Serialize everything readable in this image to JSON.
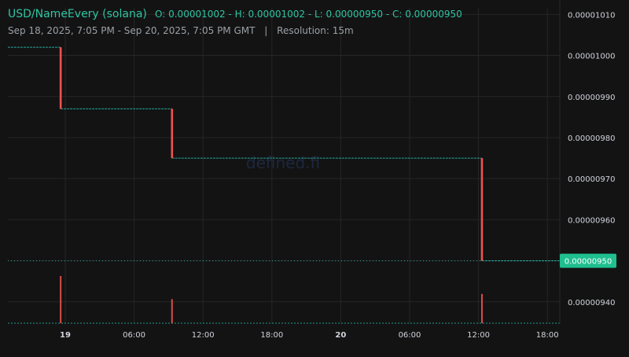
{
  "header": {
    "pair": "USD/NameEvery (solana)",
    "ohlc_line": "O: 0.00001002 - H: 0.00001002 - L: 0.00000950 - C: 0.00000950",
    "range": "Sep 18, 2025, 7:05 PM - Sep 20, 2025, 7:05 PM GMT",
    "separator": "|",
    "resolution": "Resolution: 15m"
  },
  "watermark": "defined.fi",
  "colors": {
    "background": "#131313",
    "up": "#26a69a",
    "down": "#ef5350",
    "accent": "#2fc4a2",
    "last_price_bg": "#1fbf8f"
  },
  "chart_data": {
    "type": "candlestick",
    "title": "USD/NameEvery (solana)",
    "resolution": "15m",
    "ylim": [
      9.346e-06,
      1.0116e-05
    ],
    "y_ticks": [
      "0.00001010",
      "0.00001000",
      "0.00000990",
      "0.00000980",
      "0.00000970",
      "0.00000960",
      "0.00000950",
      "0.00000940"
    ],
    "x_ticks": [
      {
        "label": "19",
        "t": 5,
        "bold": true
      },
      {
        "label": "06:00",
        "t": 11,
        "bold": false
      },
      {
        "label": "12:00",
        "t": 17,
        "bold": false
      },
      {
        "label": "18:00",
        "t": 23,
        "bold": false
      },
      {
        "label": "20",
        "t": 29,
        "bold": true
      },
      {
        "label": "06:00",
        "t": 35,
        "bold": false
      },
      {
        "label": "12:00",
        "t": 41,
        "bold": false
      },
      {
        "label": "18:00",
        "t": 47,
        "bold": false
      }
    ],
    "x_range_hours": [
      0,
      48.083
    ],
    "x_unit": "hours since Sep 18, 2025 7:05 PM",
    "last_price": "0.00000950",
    "steps": [
      {
        "t": 4.6,
        "from": 1.002e-05,
        "to": 9.87e-06
      },
      {
        "t": 14.3,
        "from": 9.87e-06,
        "to": 9.75e-06
      },
      {
        "t": 41.3,
        "from": 9.75e-06,
        "to": 9.5e-06
      }
    ],
    "segments": [
      {
        "from_t": 0,
        "to_t": 4.6,
        "price": 1.002e-05
      },
      {
        "from_t": 4.6,
        "to_t": 14.3,
        "price": 9.87e-06
      },
      {
        "from_t": 14.3,
        "to_t": 41.3,
        "price": 9.75e-06
      },
      {
        "from_t": 41.3,
        "to_t": 48.083,
        "price": 9.5e-06
      }
    ],
    "volume": [
      {
        "t": 4.6,
        "rel": 1.0
      },
      {
        "t": 14.3,
        "rel": 0.51
      },
      {
        "t": 41.3,
        "rel": 0.62
      }
    ]
  }
}
